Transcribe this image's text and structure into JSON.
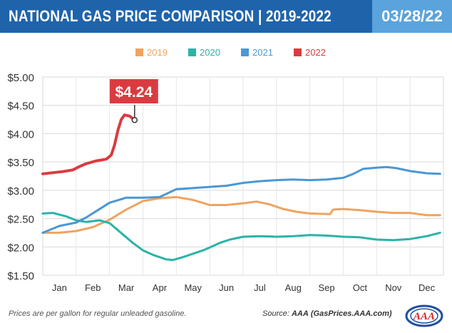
{
  "header": {
    "title": "NATIONAL GAS PRICE COMPARISON | 2019-2022",
    "date": "03/28/22"
  },
  "footer": {
    "note": "Prices are per gallon for regular unleaded gasoline.",
    "source_label": "Source:",
    "source_name": "AAA",
    "source_site": "(GasPrices.AAA.com)"
  },
  "logo": {
    "text": "AAA"
  },
  "chart_data": {
    "type": "line",
    "title": "NATIONAL GAS PRICE COMPARISON | 2019-2022",
    "xlabel": "",
    "ylabel": "",
    "ylim": [
      1.5,
      5.0
    ],
    "xlim": [
      0,
      12
    ],
    "grid": true,
    "legend_position": "top-center",
    "yticks": [
      "$1.50",
      "$2.00",
      "$2.50",
      "$3.00",
      "$3.50",
      "$4.00",
      "$4.50",
      "$5.00"
    ],
    "ytick_values": [
      1.5,
      2.0,
      2.5,
      3.0,
      3.5,
      4.0,
      4.5,
      5.0
    ],
    "categories": [
      "Jan",
      "Feb",
      "Mar",
      "Apr",
      "May",
      "Jun",
      "Jul",
      "Aug",
      "Sep",
      "Oct",
      "Nov",
      "Dec"
    ],
    "callout": {
      "label": "$4.24",
      "series": "2022",
      "x": 2.75,
      "y": 4.24
    },
    "series": [
      {
        "name": "2019",
        "color": "#f0a35e",
        "points": [
          [
            0,
            2.25
          ],
          [
            0.5,
            2.25
          ],
          [
            1,
            2.28
          ],
          [
            1.5,
            2.35
          ],
          [
            2,
            2.48
          ],
          [
            2.5,
            2.66
          ],
          [
            3,
            2.81
          ],
          [
            3.5,
            2.86
          ],
          [
            4,
            2.88
          ],
          [
            4.5,
            2.83
          ],
          [
            5,
            2.74
          ],
          [
            5.5,
            2.74
          ],
          [
            6,
            2.77
          ],
          [
            6.4,
            2.8
          ],
          [
            6.8,
            2.75
          ],
          [
            7.2,
            2.67
          ],
          [
            7.6,
            2.62
          ],
          [
            8,
            2.59
          ],
          [
            8.6,
            2.58
          ],
          [
            8.7,
            2.66
          ],
          [
            9,
            2.67
          ],
          [
            9.5,
            2.65
          ],
          [
            10,
            2.62
          ],
          [
            10.5,
            2.6
          ],
          [
            11,
            2.6
          ],
          [
            11.5,
            2.56
          ],
          [
            11.9,
            2.56
          ]
        ]
      },
      {
        "name": "2020",
        "color": "#2bb3a8",
        "points": [
          [
            0,
            2.59
          ],
          [
            0.3,
            2.6
          ],
          [
            0.7,
            2.54
          ],
          [
            1,
            2.47
          ],
          [
            1.3,
            2.44
          ],
          [
            1.7,
            2.47
          ],
          [
            2,
            2.42
          ],
          [
            2.3,
            2.27
          ],
          [
            2.7,
            2.07
          ],
          [
            3,
            1.94
          ],
          [
            3.3,
            1.86
          ],
          [
            3.7,
            1.78
          ],
          [
            3.9,
            1.77
          ],
          [
            4.2,
            1.82
          ],
          [
            4.5,
            1.88
          ],
          [
            4.8,
            1.94
          ],
          [
            5,
            1.99
          ],
          [
            5.3,
            2.07
          ],
          [
            5.6,
            2.13
          ],
          [
            6,
            2.18
          ],
          [
            6.5,
            2.19
          ],
          [
            7,
            2.18
          ],
          [
            7.5,
            2.19
          ],
          [
            8,
            2.21
          ],
          [
            8.5,
            2.2
          ],
          [
            9,
            2.18
          ],
          [
            9.5,
            2.17
          ],
          [
            10,
            2.13
          ],
          [
            10.5,
            2.12
          ],
          [
            11,
            2.14
          ],
          [
            11.5,
            2.19
          ],
          [
            11.9,
            2.25
          ]
        ]
      },
      {
        "name": "2021",
        "color": "#4b97d3",
        "points": [
          [
            0,
            2.25
          ],
          [
            0.5,
            2.37
          ],
          [
            1,
            2.43
          ],
          [
            1.3,
            2.52
          ],
          [
            1.6,
            2.63
          ],
          [
            2,
            2.78
          ],
          [
            2.5,
            2.87
          ],
          [
            3,
            2.87
          ],
          [
            3.5,
            2.88
          ],
          [
            4,
            3.02
          ],
          [
            4.5,
            3.04
          ],
          [
            5,
            3.06
          ],
          [
            5.5,
            3.08
          ],
          [
            6,
            3.13
          ],
          [
            6.5,
            3.16
          ],
          [
            7,
            3.18
          ],
          [
            7.5,
            3.19
          ],
          [
            8,
            3.18
          ],
          [
            8.5,
            3.19
          ],
          [
            9,
            3.22
          ],
          [
            9.3,
            3.29
          ],
          [
            9.6,
            3.38
          ],
          [
            10,
            3.4
          ],
          [
            10.3,
            3.41
          ],
          [
            10.6,
            3.39
          ],
          [
            11,
            3.34
          ],
          [
            11.5,
            3.3
          ],
          [
            11.9,
            3.29
          ]
        ]
      },
      {
        "name": "2022",
        "color": "#db3b40",
        "points": [
          [
            0,
            3.29
          ],
          [
            0.3,
            3.31
          ],
          [
            0.6,
            3.33
          ],
          [
            0.9,
            3.36
          ],
          [
            1.1,
            3.42
          ],
          [
            1.3,
            3.47
          ],
          [
            1.6,
            3.52
          ],
          [
            1.9,
            3.55
          ],
          [
            2.05,
            3.62
          ],
          [
            2.15,
            3.8
          ],
          [
            2.25,
            4.06
          ],
          [
            2.35,
            4.25
          ],
          [
            2.45,
            4.33
          ],
          [
            2.6,
            4.31
          ],
          [
            2.75,
            4.24
          ]
        ]
      }
    ]
  }
}
